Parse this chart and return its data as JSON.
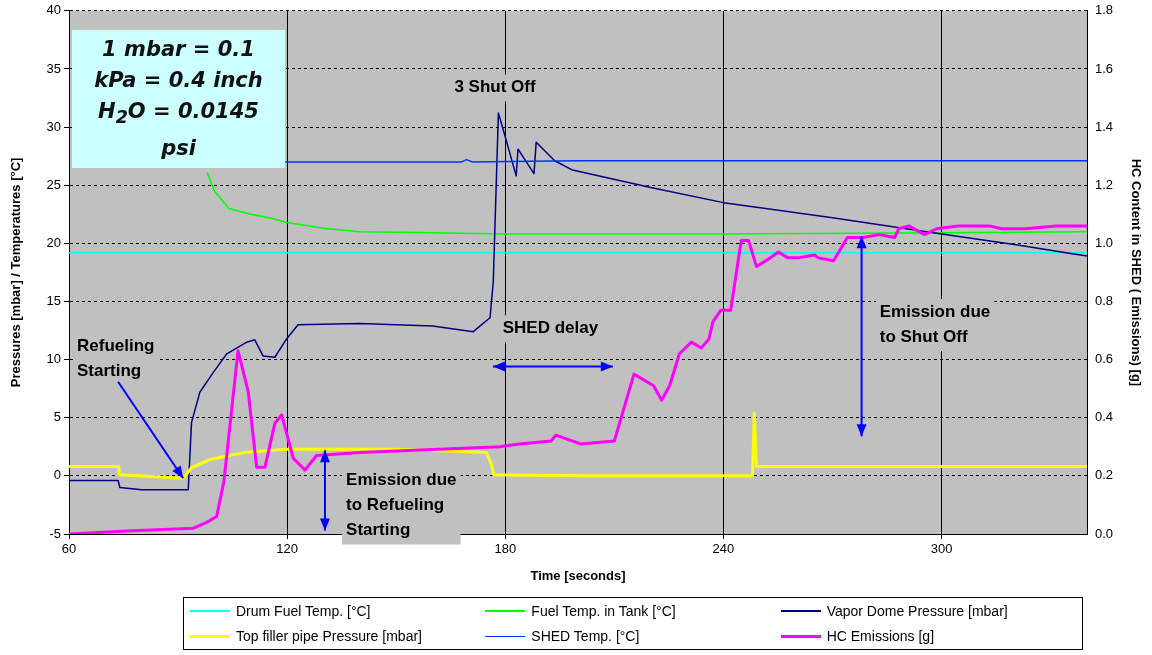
{
  "chart_data": {
    "type": "line",
    "xlabel": "Time [seconds]",
    "ylabel": "Pressures [mbar] / Temperatures [°C]",
    "y2label": "HC Content in SHED ( Emissions) [g]",
    "xlim": [
      60,
      340
    ],
    "xticks": [
      60,
      120,
      180,
      240,
      300
    ],
    "ylim": [
      -5,
      40
    ],
    "yticks": [
      -5,
      0,
      5,
      10,
      15,
      20,
      25,
      30,
      35,
      40
    ],
    "y2lim": [
      0,
      1.8
    ],
    "y2ticks": [
      {
        "value": 0,
        "label": "0.0"
      },
      0.2,
      0.4,
      0.6,
      0.8,
      {
        "value": 1,
        "label": "1.0"
      },
      1.2,
      1.4,
      1.6,
      1.8
    ],
    "grid": true,
    "legend": "bottom",
    "marker": "none",
    "annotations": [
      "1 mbar = 0.1 kPa = 0.4 inch H$_{2}$O = 0.0145 psi",
      "3 Shut Off",
      {
        "text": "Refueling Starting",
        "x": 91.4,
        "y": -0.2
      },
      "SHED delay",
      "Emission due to Shut Off",
      {
        "text": "Emission due to Refueling Starting",
        "x": 130.4,
        "y": 2.2
      }
    ],
    "series": [
      {
        "name": "Drum Fuel Temp. [°C]",
        "color": "#00ffff",
        "x": [
          60,
          120,
          180,
          240,
          300,
          340
        ],
        "values": [
          19.2,
          19.2,
          19.2,
          19.2,
          19.2,
          19.2
        ]
      },
      {
        "name": "Fuel Temp. in Tank [°C]",
        "color": "#00ff00",
        "x": [
          98,
          100,
          104,
          110,
          115,
          120,
          130,
          140,
          160,
          180,
          240,
          300,
          340
        ],
        "values": [
          26.1,
          24.5,
          23,
          22.5,
          22.2,
          21.8,
          21.3,
          21.0,
          20.9,
          20.8,
          20.8,
          20.9,
          21.0
        ]
      },
      {
        "name": "Vapor Dome Pressure [mbar]",
        "color": "#000080",
        "x": [
          60,
          73.5,
          74,
          80,
          92.8,
          93.7,
          96,
          99.7,
          103.4,
          108.9,
          111.1,
          113.4,
          116.6,
          119.9,
          123,
          140,
          160,
          171.2,
          175.8,
          176.7,
          178.1,
          179.5,
          183,
          183.5,
          187.9,
          188.5,
          193.6,
          198.5,
          220,
          240,
          270,
          300,
          320,
          340
        ],
        "values": [
          -0.4,
          -0.4,
          -1.0,
          -1.2,
          -1.2,
          4.6,
          7.2,
          8.9,
          10.5,
          11.5,
          11.7,
          10.3,
          10.2,
          11.8,
          13.0,
          13.1,
          12.9,
          12.4,
          13.6,
          16.7,
          31.2,
          29.7,
          25.8,
          28.1,
          26.0,
          28.7,
          27.1,
          26.3,
          24.8,
          23.5,
          22.2,
          20.8,
          19.9,
          18.9
        ]
      },
      {
        "name": "Top filler pipe Pressure [mbar]",
        "color": "#ffff00",
        "x": [
          60,
          73.7,
          73.8,
          91.4,
          93.7,
          98.8,
          108,
          119.9,
          149.2,
          174.8,
          176.2,
          176.8,
          200,
          248,
          248.5,
          249.1,
          340
        ],
        "values": [
          0.8,
          0.8,
          0.1,
          -0.2,
          0.7,
          1.4,
          2.0,
          2.3,
          2.3,
          2.0,
          1.0,
          0.1,
          0,
          0,
          5.4,
          0.8,
          0.8
        ]
      },
      {
        "name": "SHED Temp. [°C]",
        "color": "#0033ff",
        "x": [
          119.5,
          168,
          169.3,
          171,
          200,
          250,
          340
        ],
        "values": [
          27.0,
          27.0,
          27.2,
          27.0,
          27.1,
          27.1,
          27.1
        ]
      },
      {
        "name": "HC Emissions [g]",
        "color": "#ff00ff",
        "axis": "y2",
        "x": [
          60,
          75.9,
          94.2,
          97.9,
          100.6,
          102.6,
          106.5,
          109.3,
          111.6,
          113.9,
          116.6,
          118.5,
          121.7,
          124.9,
          128.1,
          140,
          178.5,
          183.9,
          192.6,
          193.9,
          200.7,
          210,
          215.4,
          220.8,
          223,
          225.2,
          227.9,
          231.2,
          233.9,
          236,
          237.1,
          239.3,
          242,
          244.9,
          246.9,
          249.1,
          252.9,
          255.1,
          257.8,
          260.5,
          265,
          266.1,
          270.3,
          274.1,
          278.4,
          282.8,
          287.1,
          288.2,
          291,
          295.3,
          298.6,
          304.6,
          308.9,
          313.2,
          316.5,
          322.9,
          331.6,
          340
        ],
        "values": [
          0,
          0.01,
          0.02,
          0.04,
          0.06,
          0.18,
          0.63,
          0.49,
          0.23,
          0.23,
          0.38,
          0.41,
          0.26,
          0.22,
          0.27,
          0.28,
          0.3,
          0.31,
          0.32,
          0.34,
          0.31,
          0.32,
          0.55,
          0.51,
          0.46,
          0.51,
          0.62,
          0.66,
          0.64,
          0.67,
          0.73,
          0.77,
          0.77,
          1.01,
          1.01,
          0.92,
          0.95,
          0.97,
          0.95,
          0.95,
          0.96,
          0.95,
          0.94,
          1.02,
          1.02,
          1.03,
          1.02,
          1.05,
          1.06,
          1.03,
          1.05,
          1.06,
          1.06,
          1.06,
          1.05,
          1.05,
          1.06,
          1.06
        ]
      }
    ]
  }
}
